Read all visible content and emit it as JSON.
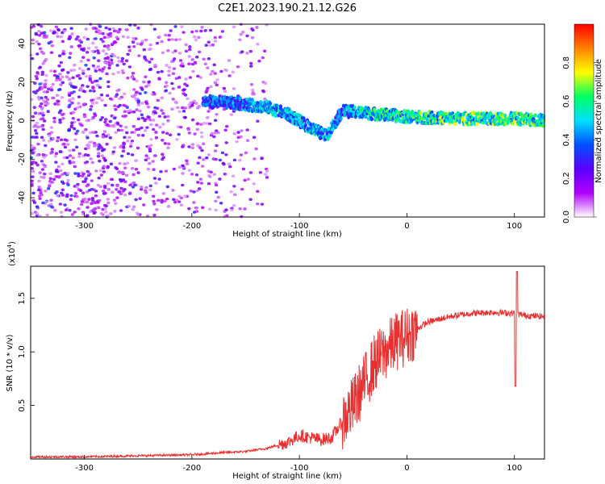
{
  "figure_title": "C2E1.2023.190.21.12.G26",
  "chart_data": [
    {
      "type": "heatmap",
      "xlabel": "Height of straight line (km)",
      "ylabel": "Frequency (Hz)",
      "xlim": [
        -350,
        128
      ],
      "ylim": [
        -50,
        50
      ],
      "xticks": [
        -300,
        -200,
        -100,
        0,
        100
      ],
      "yticks": [
        -40,
        -20,
        0,
        20,
        40
      ],
      "colorbar": {
        "label": "Normalized spectral amplitude",
        "range": [
          0.0,
          1.0
        ],
        "ticks": [
          0.0,
          0.2,
          0.4,
          0.6,
          0.8
        ],
        "colors": [
          "#ffffff",
          "#b000ff",
          "#5a00ff",
          "#0050ff",
          "#00e0ff",
          "#00ff60",
          "#ffff00",
          "#ff8000",
          "#ff0000"
        ]
      },
      "ridge": {
        "description_points": [
          {
            "x": -190,
            "y": 10,
            "amp": 0.35
          },
          {
            "x": -160,
            "y": 9,
            "amp": 0.4
          },
          {
            "x": -130,
            "y": 7,
            "amp": 0.45
          },
          {
            "x": -110,
            "y": 3,
            "amp": 0.45
          },
          {
            "x": -95,
            "y": -2,
            "amp": 0.45
          },
          {
            "x": -75,
            "y": -8,
            "amp": 0.45
          },
          {
            "x": -60,
            "y": 5,
            "amp": 0.4
          },
          {
            "x": -40,
            "y": 4,
            "amp": 0.5
          },
          {
            "x": 0,
            "y": 2,
            "amp": 0.55
          },
          {
            "x": 50,
            "y": 1,
            "amp": 0.6
          },
          {
            "x": 100,
            "y": 1,
            "amp": 0.6
          },
          {
            "x": 128,
            "y": 0,
            "amp": 0.55
          }
        ]
      }
    },
    {
      "type": "line",
      "xlabel": "Height of straight line (km)",
      "ylabel": "SNR (10 * v/v)",
      "y_multiplier": "(x10",
      "y_multiplier_exp": "4",
      "xlim": [
        -350,
        128
      ],
      "ylim": [
        0,
        1.8
      ],
      "xticks": [
        -300,
        -200,
        -100,
        0,
        100
      ],
      "yticks": [
        0.5,
        1.0,
        1.5
      ],
      "ytick_labels": [
        "0.5",
        "1.0",
        "1.5"
      ],
      "series": [
        {
          "color": "#e83030",
          "points": [
            [
              -350,
              0.02
            ],
            [
              -300,
              0.02
            ],
            [
              -250,
              0.03
            ],
            [
              -200,
              0.04
            ],
            [
              -170,
              0.06
            ],
            [
              -150,
              0.07
            ],
            [
              -130,
              0.1
            ],
            [
              -110,
              0.16
            ],
            [
              -100,
              0.22
            ],
            [
              -90,
              0.2
            ],
            [
              -80,
              0.18
            ],
            [
              -70,
              0.2
            ],
            [
              -60,
              0.35
            ],
            [
              -50,
              0.5
            ],
            [
              -40,
              0.7
            ],
            [
              -30,
              0.9
            ],
            [
              -25,
              0.95
            ],
            [
              -20,
              1.0
            ],
            [
              -10,
              1.1
            ],
            [
              0,
              1.15
            ],
            [
              10,
              1.22
            ],
            [
              20,
              1.28
            ],
            [
              40,
              1.33
            ],
            [
              60,
              1.36
            ],
            [
              80,
              1.37
            ],
            [
              100,
              1.36
            ],
            [
              110,
              1.34
            ],
            [
              128,
              1.33
            ]
          ]
        }
      ]
    }
  ]
}
